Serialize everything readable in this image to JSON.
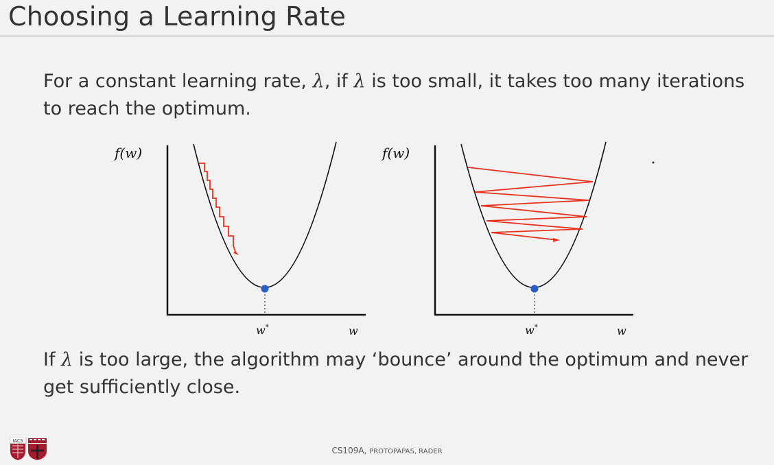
{
  "title": "Choosing a Learning Rate",
  "para1": {
    "p1": "For a constant learning rate, ",
    "lam1": "λ",
    "p2": ", if ",
    "lam2": "λ",
    "p3": " is too small, it takes too many iterations to reach the optimum."
  },
  "para2": {
    "p1": "If ",
    "lam": "λ",
    "p2": " is too large, the algorithm may ‘bounce’ around the optimum and never get sufficiently close."
  },
  "left_diagram": {
    "y_label": "f(w)",
    "x_label": "w",
    "opt_label": "w",
    "opt_sup": "*"
  },
  "right_diagram": {
    "y_label": "f(w)",
    "x_label": "w",
    "opt_label": "w",
    "opt_sup": "*"
  },
  "footer": {
    "course": "CS109A, ",
    "authors": "Protopapas, Rader"
  },
  "logo": {
    "text": "IACS"
  },
  "colors": {
    "step": "#e8321c",
    "optimum": "#2a5fc4",
    "curve": "#111111"
  }
}
